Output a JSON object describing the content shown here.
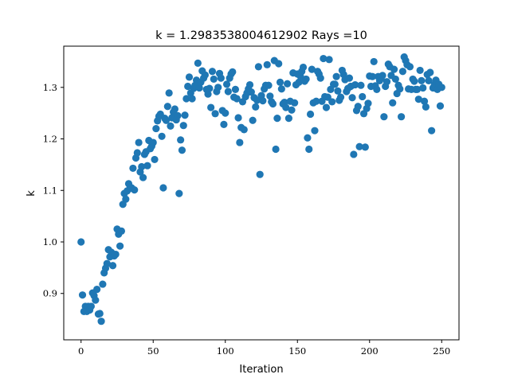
{
  "chart_data": {
    "type": "scatter",
    "title": "k = 1.2983538004612902 Rays =10",
    "xlabel": "Iteration",
    "ylabel": "k",
    "xlim": [
      -12,
      262
    ],
    "ylim": [
      0.81,
      1.38
    ],
    "xticks": [
      0,
      50,
      100,
      150,
      200,
      250
    ],
    "xtick_labels": [
      "0",
      "50",
      "100",
      "150",
      "200",
      "250"
    ],
    "yticks": [
      0.9,
      1.0,
      1.1,
      1.2,
      1.3
    ],
    "ytick_labels": [
      "0.9",
      "1.0",
      "1.1",
      "1.2",
      "1.3"
    ],
    "grid": false,
    "marker_color": "#1f77b4",
    "points": [
      [
        0,
        1.0
      ],
      [
        1,
        0.897
      ],
      [
        2,
        0.865
      ],
      [
        3,
        0.875
      ],
      [
        4,
        0.865
      ],
      [
        5,
        0.875
      ],
      [
        6,
        0.868
      ],
      [
        7,
        0.875
      ],
      [
        8,
        0.901
      ],
      [
        9,
        0.896
      ],
      [
        10,
        0.887
      ],
      [
        11,
        0.908
      ],
      [
        12,
        0.86
      ],
      [
        13,
        0.861
      ],
      [
        14,
        0.846
      ],
      [
        15,
        0.918
      ],
      [
        16,
        0.94
      ],
      [
        17,
        0.949
      ],
      [
        18,
        0.958
      ],
      [
        19,
        0.985
      ],
      [
        20,
        0.971
      ],
      [
        21,
        0.98
      ],
      [
        22,
        0.954
      ],
      [
        23,
        0.973
      ],
      [
        24,
        0.976
      ],
      [
        25,
        1.025
      ],
      [
        26,
        1.015
      ],
      [
        27,
        0.992
      ],
      [
        28,
        1.021
      ],
      [
        29,
        1.073
      ],
      [
        30,
        1.094
      ],
      [
        31,
        1.083
      ],
      [
        32,
        1.099
      ],
      [
        33,
        1.113
      ],
      [
        34,
        1.104
      ],
      [
        35,
        1.105
      ],
      [
        36,
        1.143
      ],
      [
        37,
        1.101
      ],
      [
        38,
        1.163
      ],
      [
        39,
        1.173
      ],
      [
        40,
        1.193
      ],
      [
        41,
        1.136
      ],
      [
        42,
        1.146
      ],
      [
        43,
        1.125
      ],
      [
        44,
        1.17
      ],
      [
        45,
        1.175
      ],
      [
        46,
        1.148
      ],
      [
        47,
        1.197
      ],
      [
        48,
        1.181
      ],
      [
        49,
        1.186
      ],
      [
        50,
        1.193
      ],
      [
        51,
        1.16
      ],
      [
        52,
        1.22
      ],
      [
        53,
        1.235
      ],
      [
        54,
        1.244
      ],
      [
        55,
        1.248
      ],
      [
        56,
        1.205
      ],
      [
        57,
        1.105
      ],
      [
        58,
        1.24
      ],
      [
        59,
        1.236
      ],
      [
        60,
        1.263
      ],
      [
        61,
        1.289
      ],
      [
        62,
        1.225
      ],
      [
        63,
        1.241
      ],
      [
        64,
        1.252
      ],
      [
        65,
        1.258
      ],
      [
        66,
        1.237
      ],
      [
        67,
        1.245
      ],
      [
        68,
        1.094
      ],
      [
        69,
        1.198
      ],
      [
        70,
        1.178
      ],
      [
        71,
        1.226
      ],
      [
        72,
        1.246
      ],
      [
        73,
        1.278
      ],
      [
        74,
        1.302
      ],
      [
        75,
        1.32
      ],
      [
        76,
        1.289
      ],
      [
        77,
        1.278
      ],
      [
        78,
        1.298
      ],
      [
        79,
        1.304
      ],
      [
        80,
        1.314
      ],
      [
        81,
        1.347
      ],
      [
        82,
        1.299
      ],
      [
        83,
        1.31
      ],
      [
        84,
        1.332
      ],
      [
        85,
        1.318
      ],
      [
        86,
        1.324
      ],
      [
        87,
        1.296
      ],
      [
        88,
        1.287
      ],
      [
        89,
        1.298
      ],
      [
        90,
        1.261
      ],
      [
        91,
        1.331
      ],
      [
        92,
        1.316
      ],
      [
        93,
        1.249
      ],
      [
        94,
        1.292
      ],
      [
        95,
        1.3
      ],
      [
        96,
        1.327
      ],
      [
        97,
        1.318
      ],
      [
        98,
        1.255
      ],
      [
        99,
        1.228
      ],
      [
        100,
        1.25
      ],
      [
        101,
        1.306
      ],
      [
        102,
        1.292
      ],
      [
        103,
        1.318
      ],
      [
        104,
        1.326
      ],
      [
        105,
        1.33
      ],
      [
        106,
        1.281
      ],
      [
        107,
        1.296
      ],
      [
        108,
        1.278
      ],
      [
        109,
        1.241
      ],
      [
        110,
        1.193
      ],
      [
        111,
        1.222
      ],
      [
        112,
        1.272
      ],
      [
        113,
        1.218
      ],
      [
        114,
        1.282
      ],
      [
        115,
        1.289
      ],
      [
        116,
        1.297
      ],
      [
        117,
        1.305
      ],
      [
        118,
        1.291
      ],
      [
        119,
        1.236
      ],
      [
        120,
        1.28
      ],
      [
        121,
        1.262
      ],
      [
        122,
        1.275
      ],
      [
        123,
        1.34
      ],
      [
        124,
        1.131
      ],
      [
        125,
        1.284
      ],
      [
        126,
        1.274
      ],
      [
        127,
        1.297
      ],
      [
        128,
        1.304
      ],
      [
        129,
        1.344
      ],
      [
        130,
        1.304
      ],
      [
        131,
        1.283
      ],
      [
        132,
        1.272
      ],
      [
        133,
        1.268
      ],
      [
        134,
        1.352
      ],
      [
        135,
        1.18
      ],
      [
        136,
        1.24
      ],
      [
        137,
        1.346
      ],
      [
        138,
        1.31
      ],
      [
        139,
        1.297
      ],
      [
        140,
        1.268
      ],
      [
        141,
        1.271
      ],
      [
        142,
        1.261
      ],
      [
        143,
        1.307
      ],
      [
        144,
        1.24
      ],
      [
        145,
        1.273
      ],
      [
        146,
        1.256
      ],
      [
        147,
        1.328
      ],
      [
        148,
        1.27
      ],
      [
        149,
        1.305
      ],
      [
        150,
        1.326
      ],
      [
        151,
        1.31
      ],
      [
        152,
        1.322
      ],
      [
        153,
        1.331
      ],
      [
        154,
        1.339
      ],
      [
        155,
        1.312
      ],
      [
        156,
        1.316
      ],
      [
        157,
        1.202
      ],
      [
        158,
        1.18
      ],
      [
        159,
        1.248
      ],
      [
        160,
        1.335
      ],
      [
        161,
        1.27
      ],
      [
        162,
        1.216
      ],
      [
        163,
        1.273
      ],
      [
        164,
        1.331
      ],
      [
        165,
        1.326
      ],
      [
        166,
        1.318
      ],
      [
        167,
        1.273
      ],
      [
        168,
        1.356
      ],
      [
        169,
        1.282
      ],
      [
        170,
        1.261
      ],
      [
        171,
        1.281
      ],
      [
        172,
        1.354
      ],
      [
        173,
        1.296
      ],
      [
        174,
        1.272
      ],
      [
        175,
        1.306
      ],
      [
        176,
        1.306
      ],
      [
        177,
        1.321
      ],
      [
        178,
        1.293
      ],
      [
        179,
        1.275
      ],
      [
        180,
        1.281
      ],
      [
        181,
        1.333
      ],
      [
        182,
        1.325
      ],
      [
        183,
        1.315
      ],
      [
        184,
        1.292
      ],
      [
        185,
        1.298
      ],
      [
        186,
        1.318
      ],
      [
        187,
        1.302
      ],
      [
        188,
        1.28
      ],
      [
        189,
        1.17
      ],
      [
        190,
        1.305
      ],
      [
        191,
        1.255
      ],
      [
        192,
        1.263
      ],
      [
        193,
        1.185
      ],
      [
        194,
        1.304
      ],
      [
        195,
        1.282
      ],
      [
        196,
        1.249
      ],
      [
        197,
        1.184
      ],
      [
        198,
        1.259
      ],
      [
        199,
        1.269
      ],
      [
        200,
        1.322
      ],
      [
        201,
        1.302
      ],
      [
        202,
        1.321
      ],
      [
        203,
        1.35
      ],
      [
        204,
        1.303
      ],
      [
        205,
        1.296
      ],
      [
        206,
        1.321
      ],
      [
        207,
        1.313
      ],
      [
        208,
        1.318
      ],
      [
        209,
        1.323
      ],
      [
        210,
        1.243
      ],
      [
        211,
        1.302
      ],
      [
        212,
        1.311
      ],
      [
        213,
        1.345
      ],
      [
        214,
        1.34
      ],
      [
        215,
        1.323
      ],
      [
        216,
        1.27
      ],
      [
        217,
        1.335
      ],
      [
        218,
        1.316
      ],
      [
        219,
        1.288
      ],
      [
        220,
        1.304
      ],
      [
        221,
        1.297
      ],
      [
        222,
        1.243
      ],
      [
        223,
        1.331
      ],
      [
        224,
        1.359
      ],
      [
        225,
        1.352
      ],
      [
        226,
        1.344
      ],
      [
        227,
        1.297
      ],
      [
        228,
        1.34
      ],
      [
        229,
        1.296
      ],
      [
        230,
        1.316
      ],
      [
        231,
        1.312
      ],
      [
        232,
        1.296
      ],
      [
        233,
        1.296
      ],
      [
        234,
        1.277
      ],
      [
        235,
        1.333
      ],
      [
        236,
        1.313
      ],
      [
        237,
        1.299
      ],
      [
        238,
        1.273
      ],
      [
        239,
        1.262
      ],
      [
        240,
        1.325
      ],
      [
        241,
        1.313
      ],
      [
        242,
        1.329
      ],
      [
        243,
        1.216
      ],
      [
        244,
        1.299
      ],
      [
        245,
        1.306
      ],
      [
        246,
        1.314
      ],
      [
        247,
        1.296
      ],
      [
        248,
        1.306
      ],
      [
        249,
        1.264
      ],
      [
        250,
        1.3
      ]
    ]
  }
}
